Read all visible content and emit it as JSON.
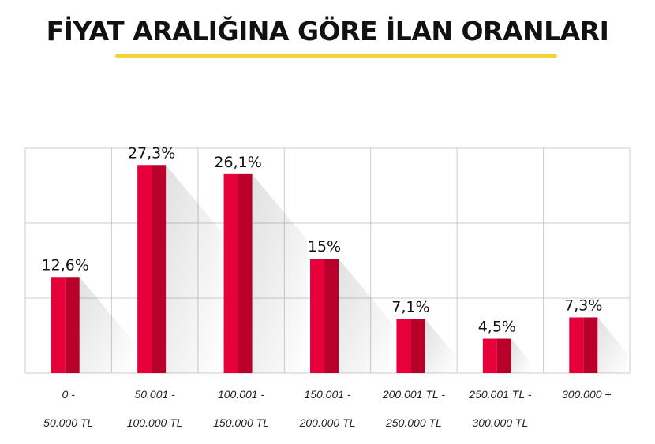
{
  "title": "FİYAT ARALIĞINA GÖRE İLAN ORANLARI",
  "colors": {
    "bar_light": "#e8003a",
    "bar_dark": "#b8002b",
    "grid": "#cccccc",
    "accent_underline": "#f2d33a"
  },
  "chart_data": {
    "type": "bar",
    "categories": [
      [
        "0 -",
        "50.000 TL"
      ],
      [
        "50.001 -",
        "100.000 TL"
      ],
      [
        "100.001 -",
        "150.000 TL"
      ],
      [
        "150.001 -",
        "200.000 TL"
      ],
      [
        "200.001 TL -",
        "250.000 TL"
      ],
      [
        "250.001 TL -",
        "300.000 TL"
      ],
      [
        "300.000 +",
        ""
      ]
    ],
    "values": [
      12.6,
      27.3,
      26.1,
      15,
      7.1,
      4.5,
      7.3
    ],
    "data_labels": [
      "12,6%",
      "27,3%",
      "26,1%",
      "15%",
      "7,1%",
      "4,5%",
      "7,3%"
    ],
    "ylim": [
      0,
      30
    ],
    "grid": true
  }
}
